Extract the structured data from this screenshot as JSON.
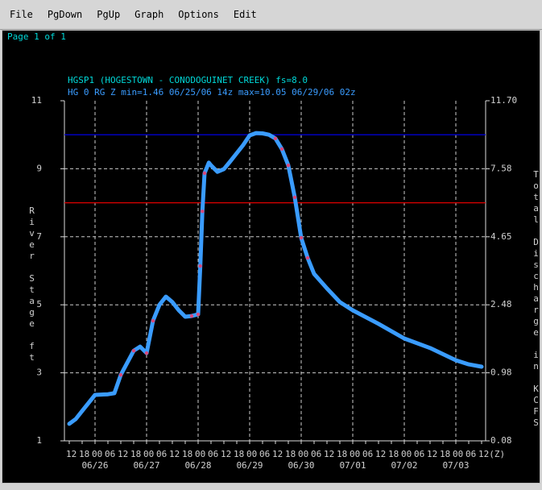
{
  "menu": [
    "File",
    "PgDown",
    "PgUp",
    "Graph",
    "Options",
    "Edit"
  ],
  "page_label": "Page 1 of 1",
  "chart_data": {
    "type": "line",
    "title": "HGSP1 (HOGESTOWN - CONODOGUINET CREEK) fs=8.0",
    "subtitle": "HG 0 RG Z min=1.46 06/25/06 14z max=10.05 06/29/06 02z",
    "ylabel": "River Stage ft",
    "y2label": "Total Discharge in KCFS",
    "grid": true,
    "xlim": [
      "06/25 12",
      "07/03 12"
    ],
    "ylim": [
      1,
      11
    ],
    "yticks": [
      1,
      3,
      5,
      7,
      9,
      11
    ],
    "y2ticks": [
      0.08,
      0.98,
      2.48,
      4.65,
      7.58,
      {
        "value": 11.7,
        "label": "11.70"
      }
    ],
    "xticks": [
      {
        "value": "06/25 12",
        "label": "12"
      },
      {
        "value": "06/25 18",
        "label": "18"
      },
      {
        "value": "06/26 00",
        "label": "00"
      },
      {
        "value": "06/26 06",
        "label": "06"
      },
      {
        "value": "06/26 12",
        "label": "12"
      },
      {
        "value": "06/26 18",
        "label": "18"
      },
      {
        "value": "06/27 00",
        "label": "00"
      },
      {
        "value": "06/27 06",
        "label": "06"
      },
      {
        "value": "06/27 12",
        "label": "12"
      },
      {
        "value": "06/27 18",
        "label": "18"
      },
      {
        "value": "06/28 00",
        "label": "00"
      },
      {
        "value": "06/28 06",
        "label": "06"
      },
      {
        "value": "06/28 12",
        "label": "12"
      },
      {
        "value": "06/28 18",
        "label": "18"
      },
      {
        "value": "06/29 00",
        "label": "00"
      },
      {
        "value": "06/29 06",
        "label": "06"
      },
      {
        "value": "06/29 12",
        "label": "12"
      },
      {
        "value": "06/29 18",
        "label": "18"
      },
      {
        "value": "06/30 00",
        "label": "00"
      },
      {
        "value": "06/30 06",
        "label": "06"
      },
      {
        "value": "06/30 12",
        "label": "12"
      },
      {
        "value": "06/30 18",
        "label": "18"
      },
      {
        "value": "07/01 00",
        "label": "00"
      },
      {
        "value": "07/01 06",
        "label": "06"
      },
      {
        "value": "07/01 12",
        "label": "12"
      },
      {
        "value": "07/01 18",
        "label": "18"
      },
      {
        "value": "07/02 00",
        "label": "00"
      },
      {
        "value": "07/02 06",
        "label": "06"
      },
      {
        "value": "07/02 12",
        "label": "12"
      },
      {
        "value": "07/02 18",
        "label": "18"
      },
      {
        "value": "07/03 00",
        "label": "00"
      },
      {
        "value": "07/03 06",
        "label": "06"
      },
      {
        "value": "07/03 12",
        "label": "12(Z)"
      }
    ],
    "xdates": [
      {
        "value": "06/26 00",
        "label": "06/26"
      },
      {
        "value": "06/27 00",
        "label": "06/27"
      },
      {
        "value": "06/28 00",
        "label": "06/28"
      },
      {
        "value": "06/29 00",
        "label": "06/29"
      },
      {
        "value": "06/30 00",
        "label": "06/30"
      },
      {
        "value": "07/01 00",
        "label": "07/01"
      },
      {
        "value": "07/02 00",
        "label": "07/02"
      },
      {
        "value": "07/03 00",
        "label": "07/03"
      }
    ],
    "thresholds": [
      {
        "value": 10,
        "color": "#0000d0"
      },
      {
        "value": 8,
        "color": "#e00000"
      }
    ],
    "x": [
      "06/25 12",
      "06/25 15",
      "06/25 18",
      "06/26 00",
      "06/26 06",
      "06/26 09",
      "06/26 12",
      "06/26 18",
      "06/26 21",
      "06/27 00",
      "06/27 03",
      "06/27 06",
      "06/27 09",
      "06/27 12",
      "06/27 15",
      "06/27 18",
      "06/27 21",
      "06/28 00",
      "06/28 01",
      "06/28 02",
      "06/28 03",
      "06/28 05",
      "06/28 06",
      "06/28 09",
      "06/28 12",
      "06/28 15",
      "06/28 18",
      "06/28 21",
      "06/29 00",
      "06/29 03",
      "06/29 06",
      "06/29 09",
      "06/29 12",
      "06/29 15",
      "06/29 18",
      "06/29 21",
      "06/30 00",
      "06/30 03",
      "06/30 06",
      "06/30 12",
      "06/30 18",
      "07/01 00",
      "07/01 12",
      "07/02 00",
      "07/02 12",
      "07/03 00",
      "07/03 06",
      "07/03 12"
    ],
    "series": [
      {
        "color": "#3a9cff",
        "style": "line",
        "values": [
          1.5,
          1.64,
          1.88,
          2.35,
          2.37,
          2.4,
          2.94,
          3.65,
          3.77,
          3.58,
          4.53,
          5.0,
          5.24,
          5.08,
          4.84,
          4.65,
          4.67,
          4.72,
          6.14,
          7.75,
          8.87,
          9.18,
          9.1,
          8.91,
          8.99,
          9.22,
          9.46,
          9.7,
          9.98,
          10.05,
          10.04,
          10.0,
          9.89,
          9.58,
          9.1,
          8.16,
          6.97,
          6.38,
          5.91,
          5.48,
          5.08,
          4.84,
          4.44,
          4.01,
          3.73,
          3.37,
          3.25,
          3.18
        ]
      },
      {
        "color": "#d8487a",
        "style": "dots",
        "values": [
          null,
          null,
          null,
          null,
          null,
          null,
          2.94,
          3.65,
          null,
          3.58,
          4.53,
          null,
          null,
          null,
          null,
          null,
          4.67,
          4.72,
          6.14,
          7.75,
          8.87,
          null,
          null,
          null,
          null,
          null,
          null,
          null,
          null,
          null,
          null,
          null,
          9.89,
          9.58,
          9.1,
          8.16,
          6.97,
          6.38,
          null,
          null,
          null,
          null,
          null,
          null,
          null,
          null,
          null,
          null
        ]
      }
    ]
  }
}
